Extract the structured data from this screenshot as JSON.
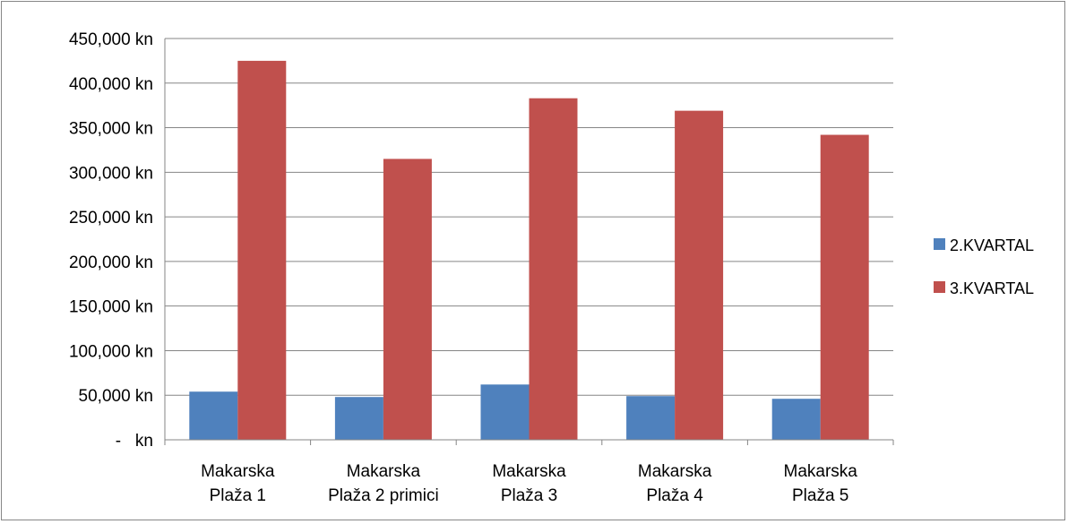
{
  "chart_data": {
    "type": "bar",
    "title": "",
    "xlabel": "",
    "ylabel": "",
    "categories": [
      [
        "Makarska",
        "Plaža 1"
      ],
      [
        "Makarska",
        "Plaža 2 primici"
      ],
      [
        "Makarska",
        "Plaža 3"
      ],
      [
        "Makarska",
        "Plaža 4"
      ],
      [
        "Makarska",
        "Plaža 5"
      ]
    ],
    "series": [
      {
        "name": "2.KVARTAL",
        "color": "#4f81bd",
        "values": [
          54000,
          48000,
          62000,
          49000,
          46000
        ]
      },
      {
        "name": "3.KVARTAL",
        "color": "#c0504d",
        "values": [
          425000,
          315000,
          383000,
          369000,
          342000
        ]
      }
    ],
    "ylim": [
      0,
      450000
    ],
    "yticks": [
      0,
      50000,
      100000,
      150000,
      200000,
      250000,
      300000,
      350000,
      400000,
      450000
    ],
    "ytick_labels": [
      "-   kn",
      "50,000 kn",
      "100,000 kn",
      "150,000 kn",
      "200,000 kn",
      "250,000 kn",
      "300,000 kn",
      "350,000 kn",
      "400,000 kn",
      "450,000 kn"
    ],
    "grid": true,
    "legend_position": "right"
  }
}
